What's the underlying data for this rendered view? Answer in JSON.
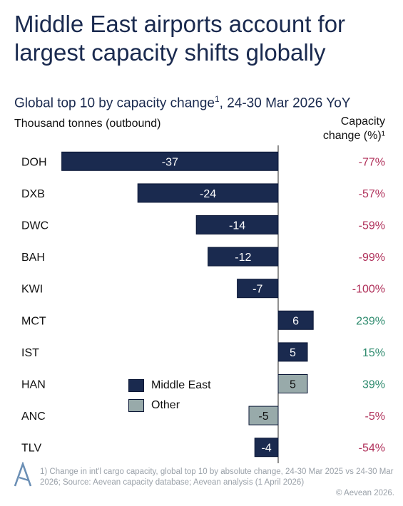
{
  "title_line1": "Middle East airports account for",
  "title_line2": "largest capacity shifts globally",
  "subtitle_main": "Global top 10 by capacity change",
  "subtitle_sup": "1",
  "subtitle_tail": ", 24-30 Mar 2026 YoY",
  "unit_label": "Thousand tonnes (outbound)",
  "column_header_line1": "Capacity",
  "column_header_line2": "change (%)¹",
  "legend": [
    {
      "label": "Middle East",
      "color": "#1a2a4f"
    },
    {
      "label": "Other",
      "color": "#98aaaa"
    }
  ],
  "footnote": "1) Change in int'l cargo capacity, global top 10 by absolute change, 24-30 Mar 2025 vs 24-30 Mar 2026; Source: Aevean capacity database; Aevean analysis (1 April 2026)",
  "copyright": "© Aevean 2026.",
  "colors": {
    "middle_east": "#1a2a4f",
    "other": "#98aaaa",
    "negative_pct": "#b0305a",
    "positive_pct": "#2e8b6e",
    "title": "#1a2a4f"
  },
  "chart_data": {
    "type": "bar",
    "orientation": "horizontal",
    "title": "Global top 10 by capacity change¹, 24-30 Mar 2026 YoY",
    "xlabel": "Thousand tonnes (outbound)",
    "xlim": [
      -40,
      13
    ],
    "grid": false,
    "legend_position": "bottom-left",
    "categories": [
      "DOH",
      "DXB",
      "DWC",
      "BAH",
      "KWI",
      "MCT",
      "IST",
      "HAN",
      "ANC",
      "TLV"
    ],
    "values": [
      -37,
      -24,
      -14,
      -12,
      -7,
      6,
      5,
      5,
      -5,
      -4
    ],
    "value_labels": [
      "-37",
      "-24",
      "-14",
      "-12",
      "-7",
      "6",
      "5",
      "5",
      "-5",
      "-4"
    ],
    "group": [
      "Middle East",
      "Middle East",
      "Middle East",
      "Middle East",
      "Middle East",
      "Middle East",
      "Middle East",
      "Other",
      "Other",
      "Middle East"
    ],
    "capacity_change_pct": [
      "-77%",
      "-57%",
      "-59%",
      "-99%",
      "-100%",
      "239%",
      "15%",
      "39%",
      "-5%",
      "-54%"
    ]
  }
}
